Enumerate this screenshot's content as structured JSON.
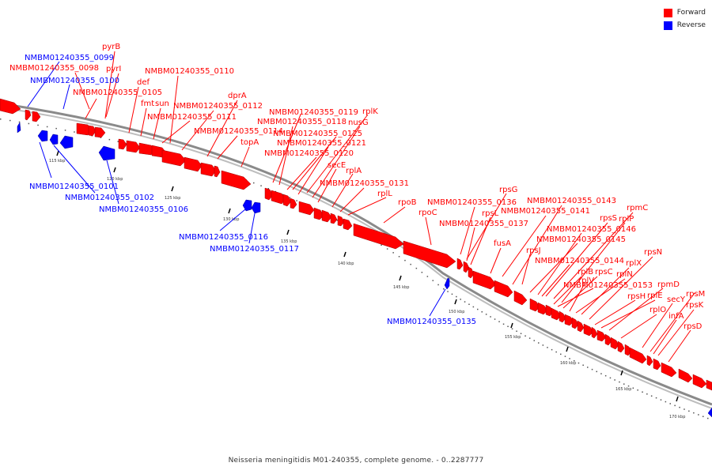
{
  "caption": "Neisseria meningitidis M01-240355, complete genome. - 0..2287777",
  "legend": [
    {
      "label": "Forward",
      "color": "#ff0000"
    },
    {
      "label": "Reverse",
      "color": "#0000ff"
    }
  ],
  "colors": {
    "forward": "#ff0000",
    "reverse": "#0000ff",
    "backbone": "#777777"
  },
  "ticks": [
    "115 kbp",
    "120 kbp",
    "125 kbp",
    "130 kbp",
    "135 kbp",
    "140 kbp",
    "145 kbp",
    "150 kbp",
    "155 kbp",
    "160 kbp",
    "165 kbp",
    "170 kbp"
  ],
  "forward_labels": [
    "pyrB",
    "NMBM01240355_0098",
    "pyrI",
    "def",
    "NMBM01240355_0105",
    "fmt",
    "sun",
    "NMBM01240355_0110",
    "NMBM01240355_0112",
    "NMBM01240355_0111",
    "dprA",
    "NMBM01240355_0114",
    "topA",
    "NMBM01240355_0119",
    "NMBM01240355_0118",
    "rplK",
    "nusG",
    "NMBM01240355_0125",
    "NMBM01240355_0121",
    "NMBM01240355_0120",
    "secE",
    "rplA",
    "NMBM01240355_0131",
    "rplL",
    "rpoB",
    "rpoC",
    "NMBM01240355_0136",
    "rpsG",
    "NMBM01240355_0143",
    "NMBM01240355_0141",
    "rpsL",
    "NMBM01240355_0137",
    "fusA",
    "rpmC",
    "rpsS",
    "rplP",
    "NMBM01240355_0146",
    "NMBM01240355_0145",
    "rpsJ",
    "NMBM01240355_0144",
    "rplB",
    "rpsC",
    "rplV",
    "rpsN",
    "rplX",
    "rplN",
    "NMBM01240355_0153",
    "rpsH",
    "rplE",
    "rpmD",
    "rplO",
    "secY",
    "rpsM",
    "rpsK",
    "infA",
    "rpsD"
  ],
  "reverse_labels": [
    "NMBM01240355_0099",
    "NMBM01240355_0100",
    "NMBM01240355_0101",
    "NMBM01240355_0102",
    "NMBM01240355_0106",
    "NMBM01240355_0116",
    "NMBM01240355_0117",
    "NMBM01240355_0135"
  ]
}
